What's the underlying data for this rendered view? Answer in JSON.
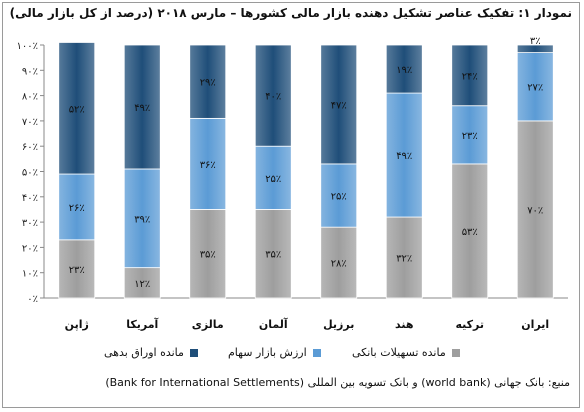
{
  "title": "نمودار ۱: تفکیک عناصر تشکیل دهنده بازار مالی کشورها – مارس ۲۰۱۸ (درصد از کل بازار مالی)",
  "source": "منبع: بانک جهانی (world bank) و بانک تسویه بین المللی (Bank for International Settlements)",
  "chart_data": {
    "type": "bar",
    "stacked": true,
    "percent": true,
    "categories": [
      "ژاپن",
      "آمریکا",
      "مالزی",
      "آلمان",
      "برزیل",
      "هند",
      "ترکیه",
      "ایران"
    ],
    "series": [
      {
        "name": "مانده تسهیلات بانکی",
        "color": "#9e9e9e",
        "values": [
          23,
          12,
          35,
          35,
          28,
          32,
          53,
          70
        ],
        "labels": [
          "۲۳٪",
          "۱۲٪",
          "۳۵٪",
          "۳۵٪",
          "۲۸٪",
          "۳۲٪",
          "۵۳٪",
          "۷۰٪"
        ]
      },
      {
        "name": "ارزش بازار سهام",
        "color": "#5b9bd5",
        "values": [
          26,
          39,
          36,
          25,
          25,
          49,
          23,
          27
        ],
        "labels": [
          "۲۶٪",
          "۳۹٪",
          "۳۶٪",
          "۲۵٪",
          "۲۵٪",
          "۴۹٪",
          "۲۳٪",
          "۲۷٪"
        ]
      },
      {
        "name": "مانده اوراق بدهی",
        "color": "#1f4e79",
        "values": [
          52,
          49,
          29,
          40,
          47,
          19,
          24,
          3
        ],
        "labels": [
          "۵۲٪",
          "۴۹٪",
          "۲۹٪",
          "۴۰٪",
          "۴۷٪",
          "۱۹٪",
          "۲۴٪",
          "۳٪"
        ]
      }
    ],
    "ylim": [
      0,
      100
    ],
    "yticks": [
      0,
      10,
      20,
      30,
      40,
      50,
      60,
      70,
      80,
      90,
      100
    ],
    "ytick_labels": [
      "۰٪",
      "۱۰٪",
      "۲۰٪",
      "۳۰٪",
      "۴۰٪",
      "۵۰٪",
      "۶۰٪",
      "۷۰٪",
      "۸۰٪",
      "۹۰٪",
      "۱۰۰٪"
    ],
    "grid": false,
    "legend": "bottom"
  }
}
